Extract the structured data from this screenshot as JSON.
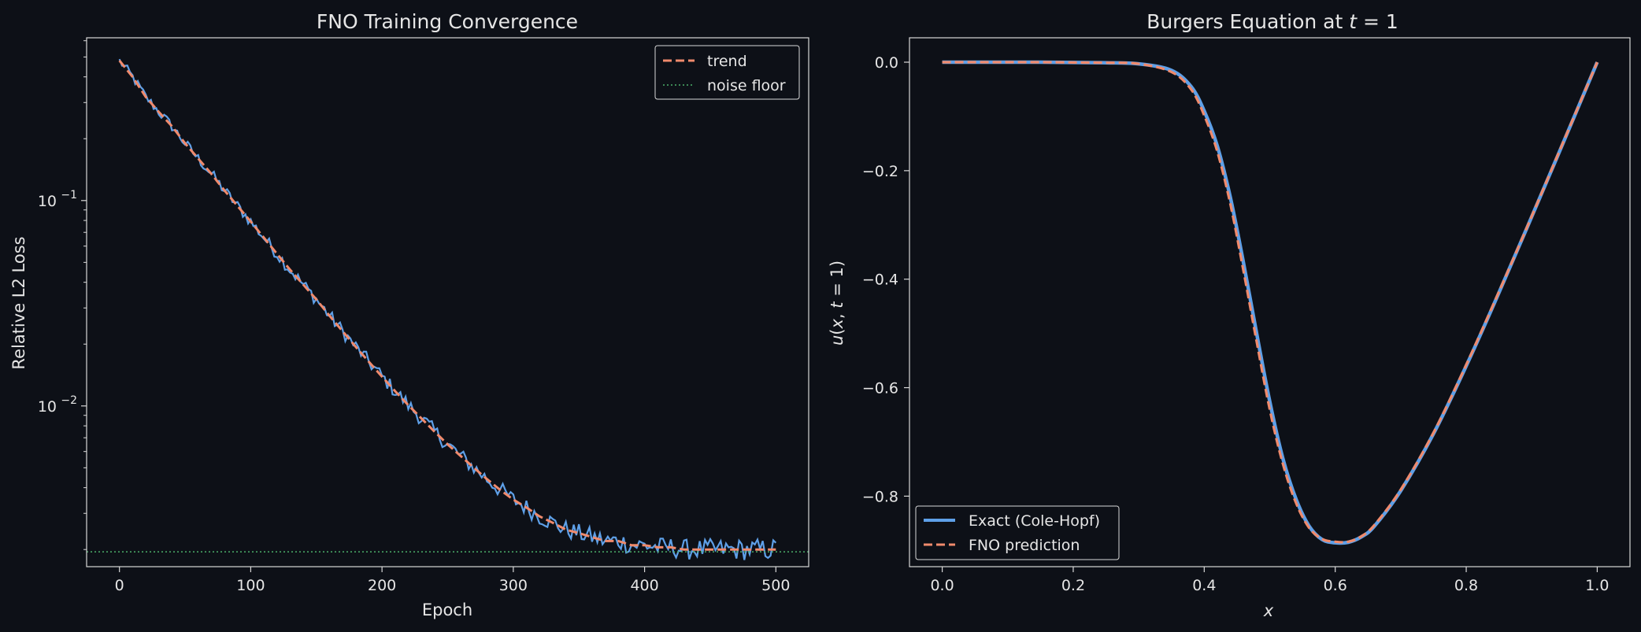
{
  "figure": {
    "background": "#0d1017",
    "text_color": "#e6e6e6",
    "spine_color": "#d8d8d8"
  },
  "chart_data": [
    {
      "type": "line",
      "title": "FNO Training Convergence",
      "xlabel": "Epoch",
      "ylabel": "Relative L2 Loss",
      "xlim": [
        -25,
        525
      ],
      "ylim": [
        0.00165,
        0.62
      ],
      "yscale": "log",
      "grid": false,
      "legend_position": "top-right",
      "xticks": [
        0,
        100,
        200,
        300,
        400,
        500
      ],
      "xtick_labels": [
        "0",
        "100",
        "200",
        "300",
        "400",
        "500"
      ],
      "yticks": [
        0.1,
        0.01
      ],
      "ytick_labels": {
        "base": "10",
        "exponents": [
          "−1",
          "−2"
        ]
      },
      "series": [
        {
          "name": "",
          "style": "solid",
          "color": "#5ea0e8",
          "x": [
            0,
            10,
            20,
            30,
            40,
            50,
            60,
            70,
            80,
            90,
            100,
            110,
            120,
            130,
            140,
            150,
            160,
            170,
            180,
            190,
            200,
            210,
            220,
            230,
            240,
            250,
            260,
            270,
            280,
            290,
            300,
            310,
            320,
            330,
            340,
            350,
            360,
            370,
            380,
            390,
            400,
            410,
            420,
            430,
            440,
            450,
            460,
            470,
            480,
            490,
            500
          ],
          "values": [
            0.48,
            0.4,
            0.32,
            0.27,
            0.23,
            0.19,
            0.16,
            0.135,
            0.112,
            0.094,
            0.079,
            0.066,
            0.055,
            0.046,
            0.039,
            0.033,
            0.0275,
            0.0231,
            0.0194,
            0.0164,
            0.0139,
            0.0118,
            0.0101,
            0.0087,
            0.0075,
            0.0065,
            0.0057,
            0.005,
            0.0044,
            0.0039,
            0.0035,
            0.0032,
            0.0029,
            0.0027,
            0.0025,
            0.0024,
            0.0023,
            0.0022,
            0.0022,
            0.0021,
            0.0021,
            0.00205,
            0.00205,
            0.002,
            0.002,
            0.002,
            0.002,
            0.002,
            0.002,
            0.002,
            0.002
          ],
          "noise_amplitude": 0.09
        },
        {
          "name": "trend",
          "style": "dashed",
          "color": "#f08a6c",
          "x": [
            0,
            10,
            20,
            30,
            40,
            50,
            60,
            70,
            80,
            90,
            100,
            110,
            120,
            130,
            140,
            150,
            160,
            170,
            180,
            190,
            200,
            210,
            220,
            230,
            240,
            250,
            260,
            270,
            280,
            290,
            300,
            310,
            320,
            330,
            340,
            350,
            360,
            370,
            380,
            390,
            400,
            410,
            420,
            430,
            440,
            450,
            460,
            470,
            480,
            490,
            500
          ],
          "values": [
            0.48,
            0.4,
            0.32,
            0.27,
            0.23,
            0.19,
            0.16,
            0.135,
            0.112,
            0.094,
            0.079,
            0.066,
            0.055,
            0.046,
            0.039,
            0.033,
            0.0275,
            0.0231,
            0.0194,
            0.0164,
            0.0139,
            0.0118,
            0.0101,
            0.0087,
            0.0075,
            0.0065,
            0.0057,
            0.005,
            0.0044,
            0.0039,
            0.0035,
            0.0032,
            0.0029,
            0.0027,
            0.0025,
            0.0024,
            0.0023,
            0.0022,
            0.0022,
            0.0021,
            0.0021,
            0.00205,
            0.00205,
            0.002,
            0.002,
            0.002,
            0.002,
            0.002,
            0.002,
            0.002,
            0.002
          ]
        },
        {
          "name": "noise floor",
          "style": "dotted",
          "color": "#4caf6a",
          "hline": 0.00195
        }
      ]
    },
    {
      "type": "line",
      "title": "Burgers Equation at t = 1",
      "title_parts": [
        "Burgers Equation at ",
        "t",
        " = 1"
      ],
      "xlabel": "x",
      "ylabel": "u(x, t = 1)",
      "ylabel_parts": [
        "u",
        "(",
        "x",
        ", ",
        "t",
        " = 1)"
      ],
      "xlim": [
        -0.05,
        1.05
      ],
      "ylim": [
        -0.93,
        0.045
      ],
      "grid": false,
      "legend_position": "bottom-left",
      "xticks": [
        0.0,
        0.2,
        0.4,
        0.6,
        0.8,
        1.0
      ],
      "xtick_labels": [
        "0.0",
        "0.2",
        "0.4",
        "0.6",
        "0.8",
        "1.0"
      ],
      "yticks": [
        0.0,
        -0.2,
        -0.4,
        -0.6,
        -0.8
      ],
      "ytick_labels": [
        "0.0",
        "−0.2",
        "−0.4",
        "−0.6",
        "−0.8"
      ],
      "series": [
        {
          "name": "Exact (Cole-Hopf)",
          "style": "solid",
          "color": "#5ea0e8",
          "x": [
            0.0,
            0.05,
            0.1,
            0.15,
            0.2,
            0.25,
            0.3,
            0.35,
            0.38,
            0.4,
            0.42,
            0.44,
            0.46,
            0.48,
            0.5,
            0.52,
            0.54,
            0.56,
            0.58,
            0.6,
            0.62,
            0.64,
            0.66,
            0.7,
            0.75,
            0.8,
            0.85,
            0.9,
            0.95,
            1.0
          ],
          "values": [
            0.0,
            0.0,
            0.0,
            0.0,
            -0.0005,
            -0.001,
            -0.003,
            -0.015,
            -0.045,
            -0.09,
            -0.155,
            -0.25,
            -0.37,
            -0.5,
            -0.625,
            -0.73,
            -0.805,
            -0.855,
            -0.88,
            -0.886,
            -0.885,
            -0.875,
            -0.855,
            -0.79,
            -0.685,
            -0.56,
            -0.425,
            -0.285,
            -0.143,
            0.0
          ]
        },
        {
          "name": "FNO prediction",
          "style": "dashed",
          "color": "#f08a6c",
          "x": [
            0.0,
            0.05,
            0.1,
            0.15,
            0.2,
            0.25,
            0.3,
            0.35,
            0.38,
            0.4,
            0.42,
            0.44,
            0.46,
            0.48,
            0.5,
            0.52,
            0.54,
            0.56,
            0.58,
            0.6,
            0.62,
            0.64,
            0.66,
            0.7,
            0.75,
            0.8,
            0.85,
            0.9,
            0.95,
            1.0
          ],
          "values": [
            0.0,
            0.0,
            0.0,
            0.0,
            -0.0005,
            -0.001,
            -0.003,
            -0.018,
            -0.05,
            -0.098,
            -0.165,
            -0.262,
            -0.385,
            -0.515,
            -0.64,
            -0.74,
            -0.812,
            -0.858,
            -0.879,
            -0.884,
            -0.884,
            -0.874,
            -0.853,
            -0.788,
            -0.683,
            -0.558,
            -0.423,
            -0.284,
            -0.142,
            0.0
          ]
        }
      ]
    }
  ]
}
